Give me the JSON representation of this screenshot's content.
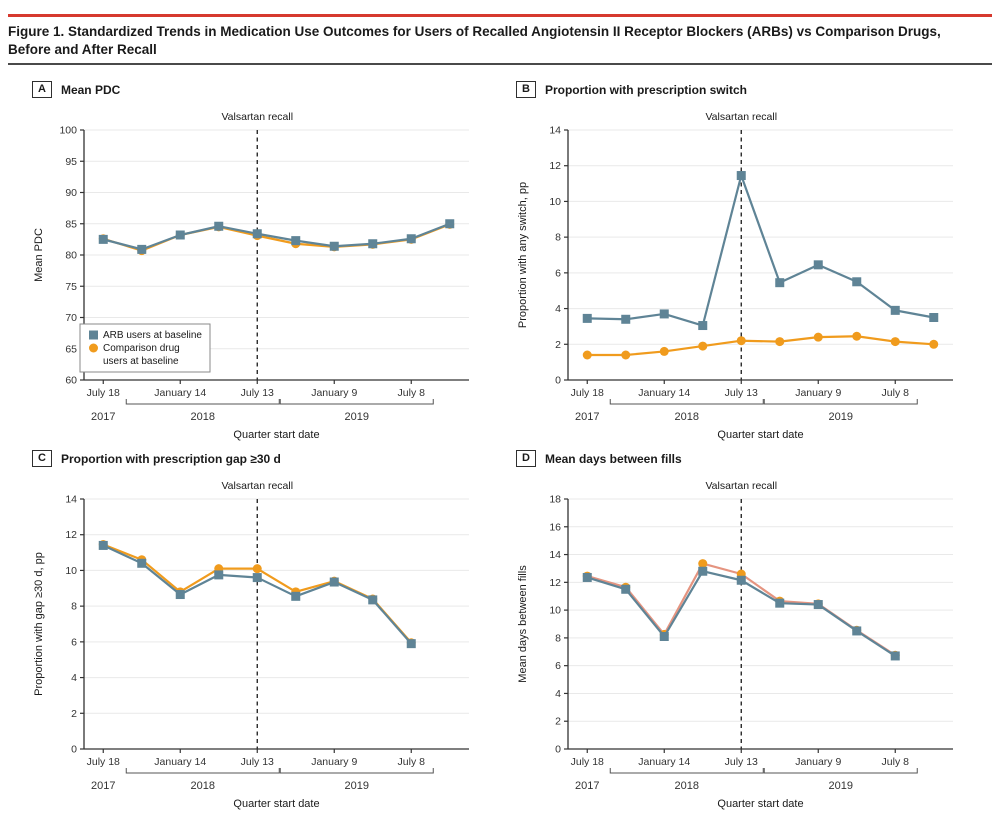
{
  "figure": {
    "title_line1": "Figure 1. Standardized Trends in Medication Use Outcomes for Users of Recalled Angiotensin II Receptor Blockers (ARBs) vs Comparison Drugs,",
    "title_line2": "Before and After Recall",
    "accent_red": "#d6392e"
  },
  "colors": {
    "arb": "#5f8496",
    "comparison": "#f09b1d",
    "comparison_line_panel_d": "#e59480",
    "axis": "#333333",
    "grid": "#e9e9e9",
    "recall_line": "#1a1a1a"
  },
  "chart_data": [
    {
      "type": "line",
      "panel": "A",
      "title": "Mean PDC",
      "ylabel": "Mean PDC",
      "ylim": [
        60,
        100
      ],
      "yticks": [
        60,
        65,
        70,
        75,
        80,
        85,
        90,
        95,
        100
      ],
      "n_slots": 10,
      "x_tick_labels": [
        "July 18",
        "January 14",
        "July 13",
        "January 9",
        "July 8"
      ],
      "x_tick_indices": [
        0,
        2,
        4,
        6,
        8
      ],
      "years": [
        {
          "label": "2017",
          "center_index": 0
        },
        {
          "label": "2018",
          "from_index": 2,
          "to_index": 4
        },
        {
          "label": "2019",
          "from_index": 6,
          "to_index": 8
        }
      ],
      "xlabel": "Quarter start date",
      "recall": {
        "label": "Valsartan recall",
        "index": 4
      },
      "series": [
        {
          "name": "ARB users at baseline",
          "marker": "square",
          "color": "#5f8496",
          "line_color": "#5f8496",
          "values": [
            82.5,
            80.9,
            83.2,
            84.6,
            83.4,
            82.3,
            81.4,
            81.8,
            82.6,
            85.0
          ]
        },
        {
          "name": "Comparison drug users at baseline",
          "marker": "circle",
          "color": "#f09b1d",
          "line_color": "#f09b1d",
          "values": [
            82.6,
            80.7,
            83.2,
            84.5,
            83.1,
            81.8,
            81.3,
            81.7,
            82.5,
            84.9
          ]
        }
      ],
      "legend": {
        "items": [
          {
            "marker": "square",
            "lines": [
              "ARB users at baseline"
            ]
          },
          {
            "marker": "circle",
            "lines": [
              "Comparison drug",
              "users at baseline"
            ]
          }
        ]
      }
    },
    {
      "type": "line",
      "panel": "B",
      "title": "Proportion with prescription switch",
      "ylabel": "Proportion with any switch, pp",
      "ylim": [
        0,
        14
      ],
      "yticks": [
        0,
        2,
        4,
        6,
        8,
        10,
        12,
        14
      ],
      "n_slots": 10,
      "x_tick_labels": [
        "July 18",
        "January 14",
        "July 13",
        "January 9",
        "July 8"
      ],
      "x_tick_indices": [
        0,
        2,
        4,
        6,
        8
      ],
      "years": [
        {
          "label": "2017",
          "center_index": 0
        },
        {
          "label": "2018",
          "from_index": 2,
          "to_index": 4
        },
        {
          "label": "2019",
          "from_index": 6,
          "to_index": 8
        }
      ],
      "xlabel": "Quarter start date",
      "recall": {
        "label": "Valsartan recall",
        "index": 4
      },
      "series": [
        {
          "name": "ARB users at baseline",
          "marker": "square",
          "color": "#5f8496",
          "line_color": "#5f8496",
          "values": [
            3.45,
            3.4,
            3.7,
            3.05,
            11.45,
            5.45,
            6.45,
            5.5,
            3.9,
            3.5
          ]
        },
        {
          "name": "Comparison drug users at baseline",
          "marker": "circle",
          "color": "#f09b1d",
          "line_color": "#f09b1d",
          "values": [
            1.4,
            1.4,
            1.6,
            1.9,
            2.2,
            2.15,
            2.4,
            2.45,
            2.15,
            2.0
          ]
        }
      ]
    },
    {
      "type": "line",
      "panel": "C",
      "title": "Proportion with prescription gap ≥30 d",
      "ylabel": "Proportion with gap ≥30 d, pp",
      "ylim": [
        0,
        14
      ],
      "yticks": [
        0,
        2,
        4,
        6,
        8,
        10,
        12,
        14
      ],
      "n_slots": 10,
      "x_tick_labels": [
        "July 18",
        "January 14",
        "July 13",
        "January 9",
        "July 8"
      ],
      "x_tick_indices": [
        0,
        2,
        4,
        6,
        8
      ],
      "years": [
        {
          "label": "2017",
          "center_index": 0
        },
        {
          "label": "2018",
          "from_index": 2,
          "to_index": 4
        },
        {
          "label": "2019",
          "from_index": 6,
          "to_index": 8
        }
      ],
      "xlabel": "Quarter start date",
      "recall": {
        "label": "Valsartan recall",
        "index": 4
      },
      "series": [
        {
          "name": "ARB users at baseline",
          "marker": "square",
          "color": "#5f8496",
          "line_color": "#5f8496",
          "values": [
            11.4,
            10.4,
            8.65,
            9.75,
            9.6,
            8.55,
            9.35,
            8.35,
            5.9
          ]
        },
        {
          "name": "Comparison drug users at baseline",
          "marker": "circle",
          "color": "#f09b1d",
          "line_color": "#f09b1d",
          "values": [
            11.45,
            10.6,
            8.8,
            10.1,
            10.1,
            8.8,
            9.4,
            8.4,
            5.95
          ]
        }
      ]
    },
    {
      "type": "line",
      "panel": "D",
      "title": "Mean days between fills",
      "ylabel": "Mean days between fills",
      "ylim": [
        0,
        18
      ],
      "yticks": [
        0,
        2,
        4,
        6,
        8,
        10,
        12,
        14,
        16,
        18
      ],
      "n_slots": 10,
      "x_tick_labels": [
        "July 18",
        "January 14",
        "July 13",
        "January 9",
        "July 8"
      ],
      "x_tick_indices": [
        0,
        2,
        4,
        6,
        8
      ],
      "years": [
        {
          "label": "2017",
          "center_index": 0
        },
        {
          "label": "2018",
          "from_index": 2,
          "to_index": 4
        },
        {
          "label": "2019",
          "from_index": 6,
          "to_index": 8
        }
      ],
      "xlabel": "Quarter start date",
      "recall": {
        "label": "Valsartan recall",
        "index": 4
      },
      "series": [
        {
          "name": "ARB users at baseline",
          "marker": "square",
          "color": "#5f8496",
          "line_color": "#5f8496",
          "values": [
            12.35,
            11.5,
            8.1,
            12.8,
            12.15,
            10.5,
            10.4,
            8.5,
            6.7
          ]
        },
        {
          "name": "Comparison drug users at baseline",
          "marker": "circle",
          "color": "#f09b1d",
          "line_color": "#e59480",
          "values": [
            12.45,
            11.65,
            8.25,
            13.35,
            12.6,
            10.65,
            10.45,
            8.55,
            6.75
          ]
        }
      ]
    }
  ]
}
